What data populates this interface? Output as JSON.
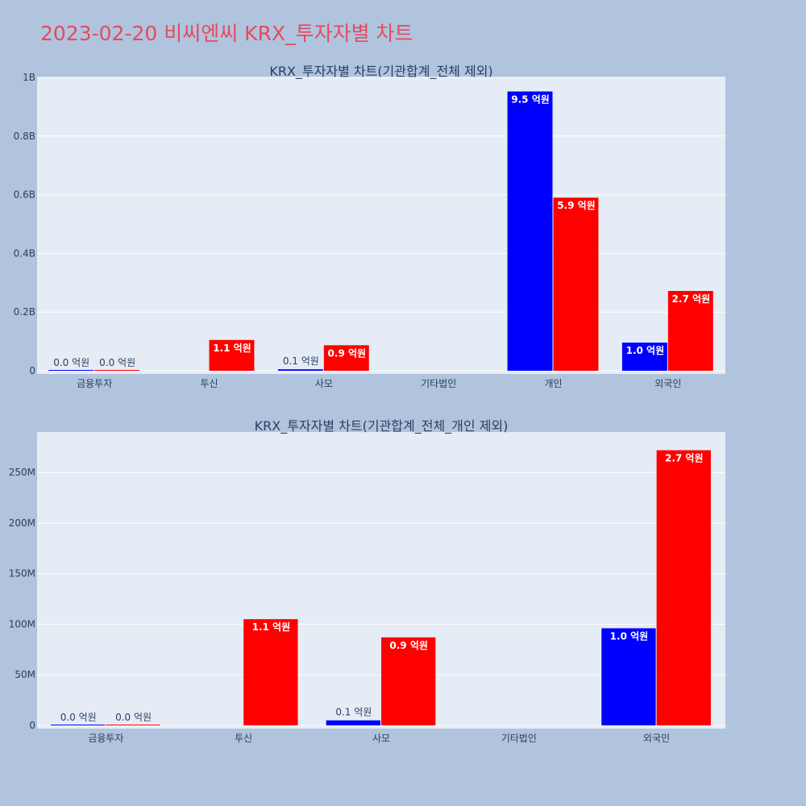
{
  "page": {
    "title": "2023-02-20 비씨엔씨 KRX_투자자별 차트"
  },
  "colors": {
    "background": "#b0c4de",
    "plot_bg": "#e5ecf6",
    "title": "#e8495c",
    "series_a": "#0000ff",
    "series_b": "#ff0000"
  },
  "chart_data": [
    {
      "type": "bar",
      "title": "KRX_투자자별 차트(기관합계_전체 제외)",
      "categories": [
        "금융투자",
        "투신",
        "사모",
        "기타법인",
        "개인",
        "외국인"
      ],
      "ylim": [
        0,
        1000000000
      ],
      "yticks": [
        0,
        200000000,
        400000000,
        600000000,
        800000000,
        1000000000
      ],
      "ytick_labels": [
        "0",
        "0.2B",
        "0.4B",
        "0.6B",
        "0.8B",
        "1B"
      ],
      "grid": true,
      "series": [
        {
          "color": "#0000ff",
          "values": [
            0,
            null,
            5000000,
            null,
            952000000,
            96000000
          ],
          "labels": [
            "0.0 억원",
            "",
            "0.1 억원",
            "",
            "9.5 억원",
            "1.0 억원"
          ]
        },
        {
          "color": "#ff0000",
          "values": [
            0,
            105000000,
            87000000,
            null,
            590000000,
            272000000
          ],
          "labels": [
            "0.0 억원",
            "1.1 억원",
            "0.9 억원",
            "",
            "5.9 억원",
            "2.7 억원"
          ]
        }
      ]
    },
    {
      "type": "bar",
      "title": "KRX_투자자별 차트(기관합계_전체_개인 제외)",
      "categories": [
        "금융투자",
        "투신",
        "사모",
        "기타법인",
        "외국인"
      ],
      "ylim": [
        0,
        290000000
      ],
      "yticks": [
        0,
        50000000,
        100000000,
        150000000,
        200000000,
        250000000
      ],
      "ytick_labels": [
        "0",
        "50M",
        "100M",
        "150M",
        "200M",
        "250M"
      ],
      "grid": true,
      "series": [
        {
          "color": "#0000ff",
          "values": [
            0,
            null,
            5000000,
            null,
            96000000
          ],
          "labels": [
            "0.0 억원",
            "",
            "0.1 억원",
            "",
            "1.0 억원"
          ]
        },
        {
          "color": "#ff0000",
          "values": [
            0,
            105000000,
            87000000,
            null,
            272000000
          ],
          "labels": [
            "0.0 억원",
            "1.1 억원",
            "0.9 억원",
            "",
            "2.7 억원"
          ]
        }
      ]
    }
  ]
}
